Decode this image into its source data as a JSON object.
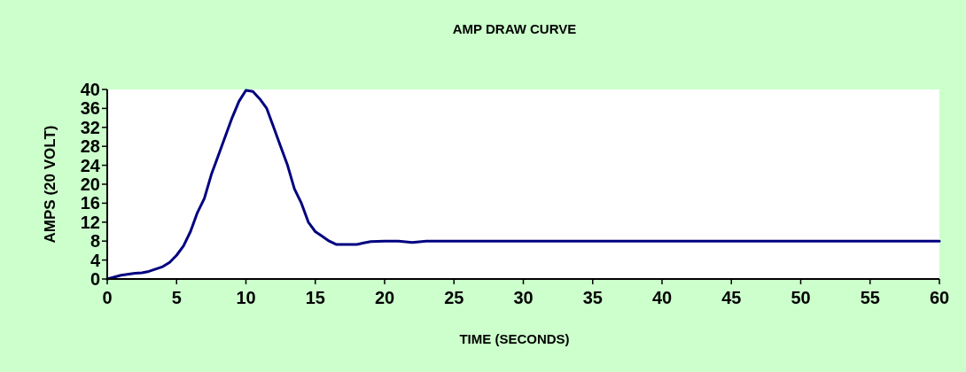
{
  "chart_data": {
    "type": "line",
    "title": "AMP DRAW CURVE",
    "xlabel": "TIME (SECONDS)",
    "ylabel": "AMPS (20 VOLT)",
    "x": [
      0,
      1,
      2,
      2.5,
      3,
      4,
      4.5,
      5,
      5.5,
      6,
      6.5,
      7,
      7.5,
      8,
      8.5,
      9,
      9.5,
      10,
      10.5,
      11,
      11.5,
      12,
      12.5,
      13,
      13.5,
      14,
      14.5,
      15,
      15.5,
      16,
      16.5,
      17,
      18,
      18.5,
      19,
      20,
      21,
      22,
      23,
      60
    ],
    "series": [
      {
        "color": "#000080",
        "values": [
          0,
          0.8,
          1.2,
          1.3,
          1.6,
          2.6,
          3.5,
          5,
          7,
          10,
          14,
          17,
          22,
          26,
          30,
          34,
          37.5,
          39.8,
          39.6,
          38,
          36,
          32,
          28,
          24,
          19,
          16,
          12,
          10,
          9,
          8,
          7.3,
          7.3,
          7.3,
          7.6,
          7.9,
          8,
          8,
          7.7,
          8,
          8
        ]
      }
    ],
    "xlim": [
      0,
      60
    ],
    "xticks": [
      0,
      5,
      10,
      15,
      20,
      25,
      30,
      35,
      40,
      45,
      50,
      55,
      60
    ],
    "ylim": [
      0,
      40
    ],
    "yticks": [
      0,
      4,
      8,
      12,
      16,
      20,
      24,
      28,
      32,
      36,
      40
    ],
    "grid": false,
    "marker": "none",
    "line_style": "solid"
  }
}
